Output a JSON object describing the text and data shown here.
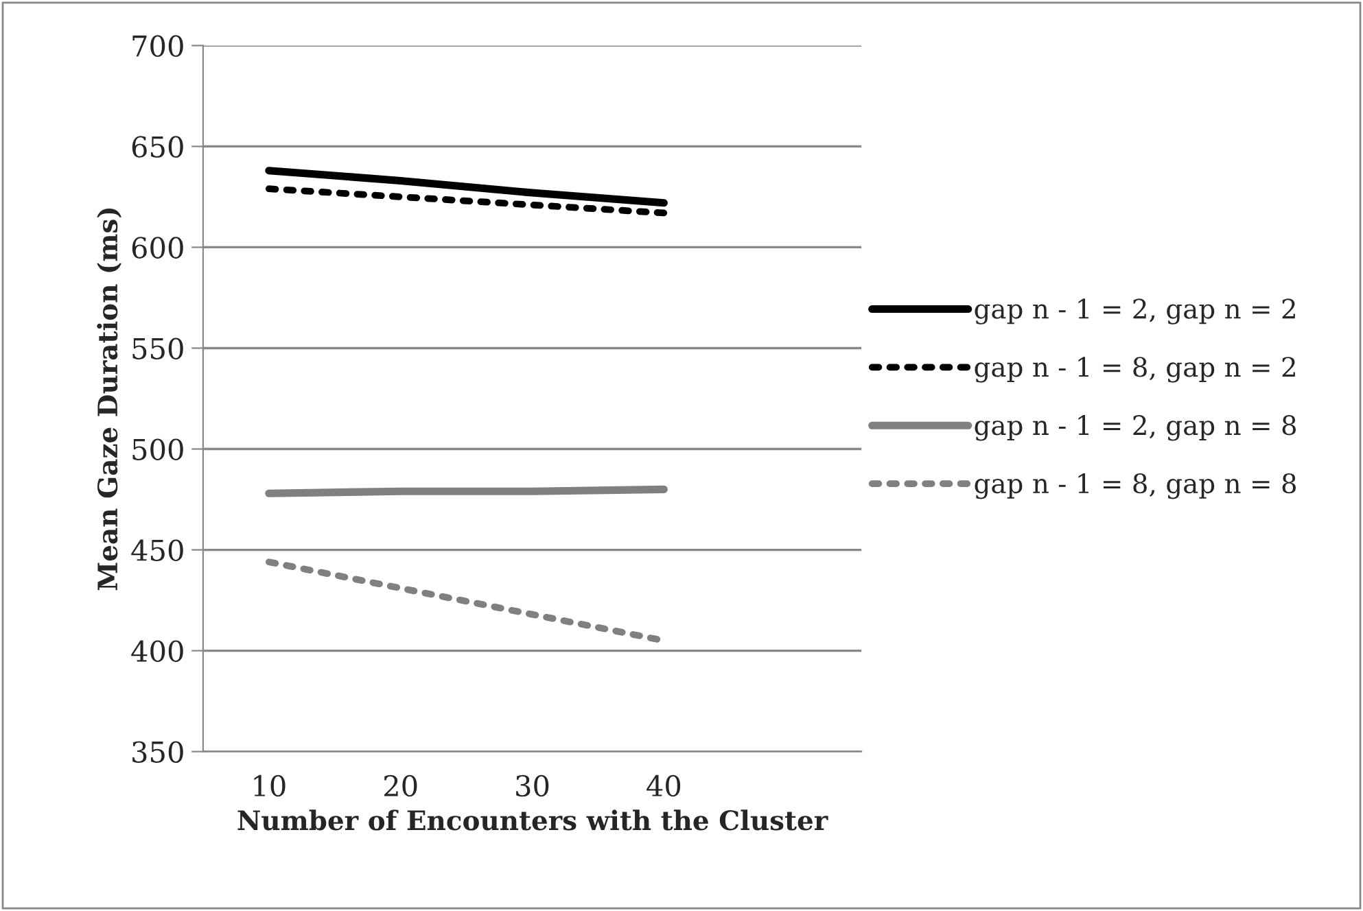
{
  "chart_data": {
    "type": "line",
    "xlabel": "Number of Encounters with the Cluster",
    "ylabel": "Mean Gaze Duration (ms)",
    "categories": [
      "10",
      "20",
      "30",
      "40",
      null
    ],
    "series": [
      {
        "name": "gap n - 1 = 2, gap n = 2",
        "color": "#000000",
        "line_style": "solid",
        "values": [
          638,
          633,
          627,
          622,
          null
        ]
      },
      {
        "name": "gap n - 1 = 8, gap n = 2",
        "color": "#000000",
        "line_style": "dotted",
        "values": [
          629,
          625,
          621,
          617,
          null
        ]
      },
      {
        "name": "gap n - 1 = 2, gap n = 8",
        "color": "#808080",
        "line_style": "solid",
        "values": [
          478,
          479,
          479,
          480,
          null
        ]
      },
      {
        "name": "gap n - 1 = 8, gap n = 8",
        "color": "#808080",
        "line_style": "dotted",
        "values": [
          444,
          431,
          418,
          405,
          null
        ]
      }
    ],
    "ylim": [
      350,
      700
    ],
    "yticks": [
      350,
      400,
      450,
      500,
      550,
      600,
      650,
      700
    ],
    "grid": "y",
    "legend": "right",
    "marker": "none"
  }
}
